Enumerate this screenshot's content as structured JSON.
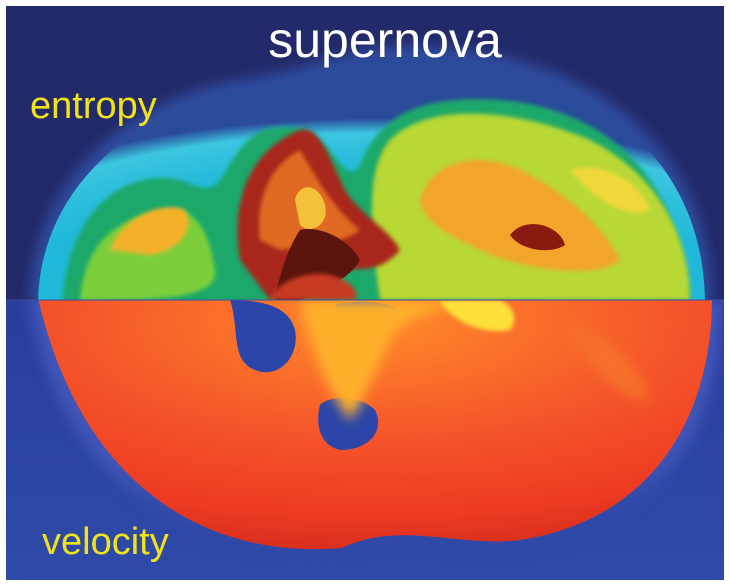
{
  "title": "supernova",
  "labels": {
    "top": "entropy",
    "bottom": "velocity"
  }
}
